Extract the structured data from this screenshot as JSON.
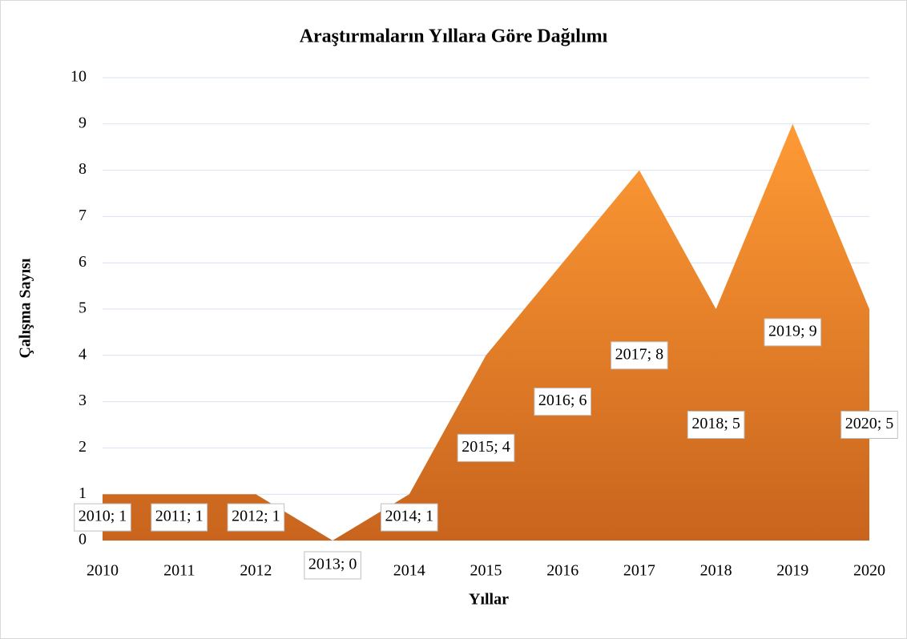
{
  "chart_data": {
    "type": "area",
    "title": "Araştırmaların Yıllara Göre Dağılımı",
    "x_label": "Yıllar",
    "y_label": "Çalışma Sayısı",
    "categories": [
      "2010",
      "2011",
      "2012",
      "2013",
      "2014",
      "2015",
      "2016",
      "2017",
      "2018",
      "2019",
      "2020"
    ],
    "values": [
      1,
      1,
      1,
      0,
      1,
      4,
      6,
      8,
      5,
      9,
      5
    ],
    "value_labels": [
      "2010; 1",
      "2011; 1",
      "2012; 1",
      "2013; 0",
      "2014; 1",
      "2015; 4",
      "2016; 6",
      "2017; 8",
      "2018; 5",
      "2019; 9",
      "2020; 5"
    ],
    "color": "#ed7d31",
    "ylim": [
      0,
      10
    ],
    "yticks": [
      0,
      1,
      2,
      3,
      4,
      5,
      6,
      7,
      8,
      9,
      10
    ],
    "grid": true
  }
}
